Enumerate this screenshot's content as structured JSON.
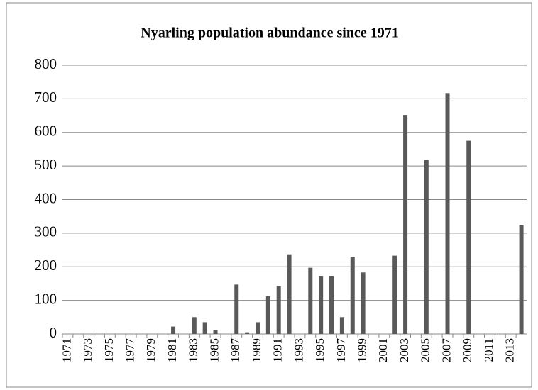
{
  "chart_data": {
    "type": "bar",
    "title": "Nyarling population abundance since 1971",
    "categories": [
      "1971",
      null,
      "1973",
      null,
      "1975",
      null,
      "1977",
      null,
      "1979",
      null,
      "1981",
      null,
      "1983",
      null,
      "1985",
      null,
      "1987",
      null,
      "1989",
      null,
      "1991",
      null,
      "1993",
      null,
      "1995",
      null,
      "1997",
      null,
      "1999",
      null,
      "2001",
      null,
      "2003",
      null,
      "2005",
      null,
      "2007",
      null,
      "2009",
      null,
      "2011",
      null,
      "2013",
      null
    ],
    "values": [
      0,
      0,
      0,
      0,
      0,
      0,
      0,
      0,
      0,
      0,
      22,
      0,
      50,
      35,
      12,
      0,
      147,
      5,
      35,
      112,
      143,
      237,
      0,
      197,
      173,
      173,
      50,
      230,
      183,
      0,
      0,
      233,
      652,
      0,
      518,
      0,
      717,
      0,
      575,
      0,
      0,
      0,
      0,
      325
    ],
    "color": "#595959",
    "ylim": [
      0,
      800
    ],
    "yticks": [
      0,
      100,
      200,
      300,
      400,
      500,
      600,
      700,
      800
    ],
    "grid": true
  }
}
